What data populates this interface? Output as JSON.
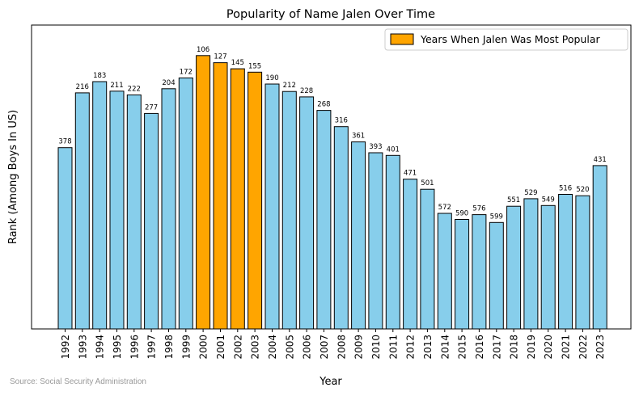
{
  "chart_data": {
    "type": "bar",
    "title": "Popularity of Name Jalen Over Time",
    "xlabel": "Year",
    "ylabel": "Rank (Among Boys In US)",
    "categories": [
      "1992",
      "1993",
      "1994",
      "1995",
      "1996",
      "1997",
      "1998",
      "1999",
      "2000",
      "2001",
      "2002",
      "2003",
      "2004",
      "2005",
      "2006",
      "2007",
      "2008",
      "2009",
      "2010",
      "2011",
      "2012",
      "2013",
      "2014",
      "2015",
      "2016",
      "2017",
      "2018",
      "2019",
      "2020",
      "2021",
      "2022",
      "2023"
    ],
    "values": [
      378,
      216,
      183,
      211,
      222,
      277,
      204,
      172,
      106,
      127,
      145,
      155,
      190,
      212,
      228,
      268,
      316,
      361,
      393,
      401,
      471,
      501,
      572,
      590,
      576,
      599,
      551,
      529,
      549,
      516,
      520,
      431
    ],
    "highlighted_categories": [
      "2000",
      "2001",
      "2002",
      "2003"
    ],
    "y_axis": "rank, inverted (rank 1 at top), tick labels hidden",
    "ylim": [
      1,
      800
    ],
    "grid": false,
    "legend": {
      "placement": "top-right",
      "entries": [
        {
          "label": "Years When Jalen Was Most Popular",
          "color": "#ffa500"
        }
      ]
    },
    "colors": {
      "default": "#87ceeb",
      "highlight": "#ffa500",
      "edge": "#000000"
    }
  },
  "source_note": "Source: Social Security Administration"
}
